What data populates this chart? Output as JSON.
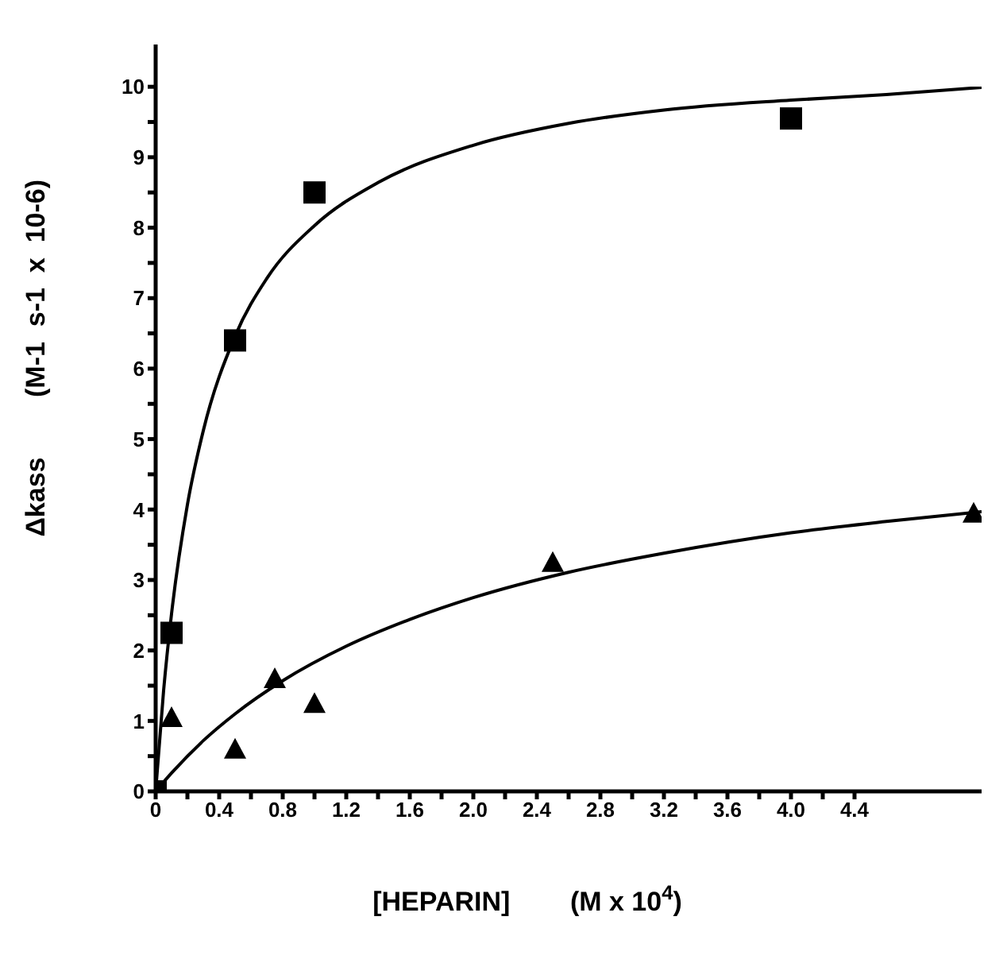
{
  "chart_data": {
    "type": "scatter",
    "xlabel": "[HEPARIN]        (M x 10$^{4}$)",
    "ylabel": "Δkass        (M-1  s-1  x  10-6)",
    "xlim": [
      0,
      5.2
    ],
    "ylim": [
      0,
      10.6
    ],
    "xticks": [
      0,
      {
        "value": 0.2,
        "label": null
      },
      0.4,
      {
        "value": 0.6,
        "label": null
      },
      0.8,
      {
        "value": 1,
        "label": null
      },
      1.2,
      {
        "value": 1.4,
        "label": null
      },
      1.6,
      {
        "value": 1.8,
        "label": null
      },
      {
        "value": 2,
        "label": "2.0"
      },
      {
        "value": 2.2,
        "label": null
      },
      2.4,
      {
        "value": 2.6,
        "label": null
      },
      2.8,
      {
        "value": 3,
        "label": null
      },
      3.2,
      {
        "value": 3.4,
        "label": null
      },
      3.6,
      {
        "value": 3.8,
        "label": null
      },
      {
        "value": 4,
        "label": "4.0"
      },
      {
        "value": 4.2,
        "label": null
      },
      4.4
    ],
    "yticks": [
      0,
      {
        "value": 0.5,
        "label": null
      },
      1,
      {
        "value": 1.5,
        "label": null
      },
      2,
      {
        "value": 2.5,
        "label": null
      },
      3,
      {
        "value": 3.5,
        "label": null
      },
      4,
      {
        "value": 4.5,
        "label": null
      },
      5,
      {
        "value": 5.5,
        "label": null
      },
      6,
      {
        "value": 6.5,
        "label": null
      },
      7,
      {
        "value": 7.5,
        "label": null
      },
      8,
      {
        "value": 8.5,
        "label": null
      },
      9,
      {
        "value": 9.5,
        "label": null
      },
      10
    ],
    "grid": false,
    "legend": false,
    "series": [
      {
        "marker": "square",
        "color": "#000000",
        "x": [
          0,
          0.1,
          0.5,
          1.0,
          4.0
        ],
        "values": [
          0,
          2.25,
          6.4,
          8.5,
          9.55
        ]
      },
      {
        "marker": "triangle",
        "color": "#000000",
        "x": [
          0.1,
          0.5,
          0.75,
          1.0,
          2.5,
          5.15
        ],
        "values": [
          1.05,
          0.6,
          1.6,
          1.25,
          3.25,
          3.95
        ]
      },
      {
        "type": "line",
        "marker": "none",
        "color": "#000000",
        "x": [
          0,
          0.05,
          0.1,
          0.2,
          0.3,
          0.5,
          0.7,
          1.0,
          1.4,
          2.0,
          2.6,
          3.2,
          4.0,
          4.6,
          5.2
        ],
        "values": [
          0,
          1.43,
          2.52,
          4.07,
          5.12,
          6.46,
          7.28,
          8.03,
          8.64,
          9.17,
          9.48,
          9.67,
          9.81,
          9.89,
          9.99
        ]
      },
      {
        "type": "line",
        "marker": "none",
        "color": "#000000",
        "x": [
          0,
          0.1,
          0.3,
          0.5,
          0.8,
          1.2,
          1.6,
          2.0,
          2.6,
          3.2,
          4.0,
          4.6,
          5.2
        ],
        "values": [
          0,
          0.26,
          0.72,
          1.1,
          1.57,
          2.06,
          2.44,
          2.75,
          3.11,
          3.38,
          3.67,
          3.83,
          3.97
        ]
      }
    ]
  }
}
